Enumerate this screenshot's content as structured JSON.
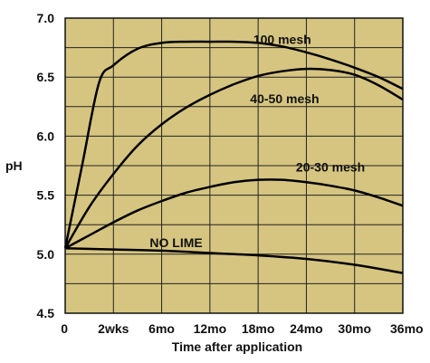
{
  "chart_data": {
    "type": "line",
    "title": "",
    "xlabel": "Time after application",
    "ylabel": "pH",
    "x_tick_labels": [
      "0",
      "2wks",
      "6mo",
      "12mo",
      "18mo",
      "24mo",
      "30mo",
      "36mo"
    ],
    "y_tick_labels": [
      "4.5",
      "5.0",
      "5.5",
      "6.0",
      "6.5",
      "7.0"
    ],
    "y_ticks": [
      4.5,
      5.0,
      5.5,
      6.0,
      6.5,
      7.0
    ],
    "ylim": [
      4.5,
      7.0
    ],
    "grid": true,
    "background_color": "#d6c580",
    "line_color": "#000000",
    "x_positions": [
      0,
      1,
      2,
      3,
      4,
      5,
      6,
      7
    ],
    "series": [
      {
        "name": "100 mesh",
        "label_at": [
          4.5,
          6.78
        ],
        "points": [
          [
            0,
            5.05
          ],
          [
            0.35,
            5.75
          ],
          [
            0.7,
            6.45
          ],
          [
            1,
            6.6
          ],
          [
            1.5,
            6.74
          ],
          [
            2,
            6.79
          ],
          [
            2.5,
            6.8
          ],
          [
            3,
            6.8
          ],
          [
            3.5,
            6.8
          ],
          [
            4,
            6.79
          ],
          [
            4.5,
            6.76
          ],
          [
            5,
            6.71
          ],
          [
            5.5,
            6.65
          ],
          [
            6,
            6.58
          ],
          [
            6.5,
            6.5
          ],
          [
            7,
            6.4
          ]
        ]
      },
      {
        "name": "40-50 mesh",
        "label_at": [
          4.55,
          6.28
        ],
        "points": [
          [
            0,
            5.05
          ],
          [
            0.5,
            5.4
          ],
          [
            1,
            5.68
          ],
          [
            1.5,
            5.92
          ],
          [
            2,
            6.1
          ],
          [
            2.5,
            6.24
          ],
          [
            3,
            6.35
          ],
          [
            3.5,
            6.44
          ],
          [
            4,
            6.51
          ],
          [
            4.5,
            6.55
          ],
          [
            5,
            6.57
          ],
          [
            5.5,
            6.56
          ],
          [
            6,
            6.52
          ],
          [
            6.5,
            6.43
          ],
          [
            7,
            6.31
          ]
        ]
      },
      {
        "name": "20-30 mesh",
        "label_at": [
          5.5,
          5.7
        ],
        "points": [
          [
            0,
            5.05
          ],
          [
            0.5,
            5.16
          ],
          [
            1,
            5.27
          ],
          [
            1.5,
            5.37
          ],
          [
            2,
            5.45
          ],
          [
            2.5,
            5.52
          ],
          [
            3,
            5.57
          ],
          [
            3.5,
            5.61
          ],
          [
            4,
            5.63
          ],
          [
            4.5,
            5.63
          ],
          [
            5,
            5.61
          ],
          [
            5.5,
            5.58
          ],
          [
            6,
            5.54
          ],
          [
            6.5,
            5.48
          ],
          [
            7,
            5.41
          ]
        ]
      },
      {
        "name": "NO LIME",
        "label_at": [
          2.3,
          5.06
        ],
        "points": [
          [
            0,
            5.05
          ],
          [
            1,
            5.04
          ],
          [
            2,
            5.03
          ],
          [
            3,
            5.01
          ],
          [
            4,
            4.99
          ],
          [
            5,
            4.96
          ],
          [
            6,
            4.91
          ],
          [
            7,
            4.84
          ]
        ]
      }
    ]
  }
}
